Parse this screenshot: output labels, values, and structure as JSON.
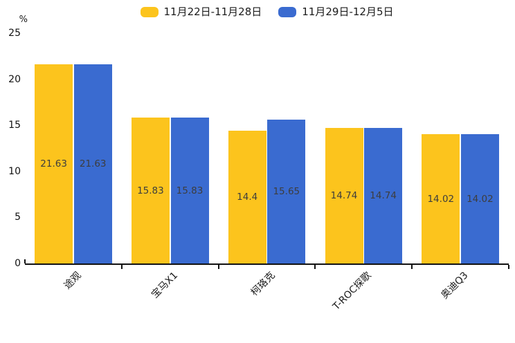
{
  "chart_data": {
    "type": "bar",
    "title": "",
    "categories": [
      "途观",
      "宝马X1",
      "柯珞克",
      "T-ROC探歌",
      "奥迪Q3"
    ],
    "series": [
      {
        "name": "11月22日-11月28日",
        "color": "#FCC41D",
        "values": [
          21.63,
          15.83,
          14.4,
          14.74,
          14.02
        ]
      },
      {
        "name": "11月29日-12月5日",
        "color": "#3A6BD0",
        "values": [
          21.63,
          15.83,
          15.65,
          14.74,
          14.02
        ]
      }
    ],
    "value_labels": [
      "21.63",
      "15.83",
      "14.4",
      "14.74",
      "14.02",
      "21.63",
      "15.83",
      "15.65",
      "14.74",
      "14.02"
    ],
    "xlabel": "",
    "ylabel": "%",
    "ylim": [
      0,
      25
    ],
    "yticks": [
      0,
      5,
      10,
      15,
      20,
      25
    ],
    "grid": false,
    "legend_position": "top-center",
    "value_label_position": "inside-center",
    "xtick_rotation": 45
  }
}
